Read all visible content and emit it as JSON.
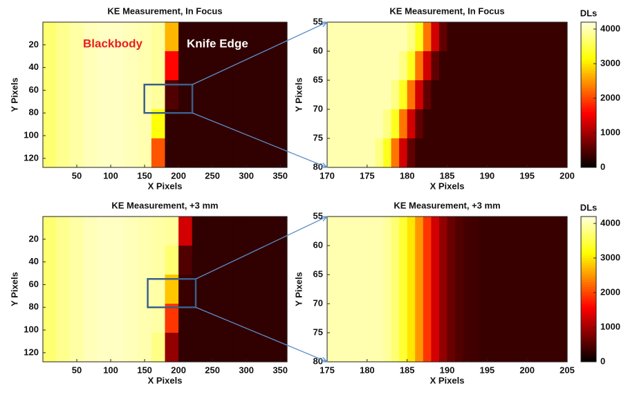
{
  "chart_data": [
    {
      "type": "heatmap",
      "title": "KE Measurement, In Focus",
      "xlabel": "X Pixels",
      "ylabel": "Y Pixels",
      "xlim": [
        0,
        360
      ],
      "ylim": [
        0,
        128
      ],
      "y_reversed": true,
      "clim": [
        0,
        4200
      ],
      "xticks": [
        50,
        100,
        150,
        200,
        250,
        300,
        350
      ],
      "yticks": [
        20,
        40,
        60,
        80,
        100,
        120
      ],
      "annotations": [
        {
          "text": "Blackbody",
          "color": "#e8201c"
        },
        {
          "text": "Knife Edge",
          "color": "#ffffff"
        }
      ],
      "values": [
        [
          3700,
          3850,
          3950,
          4050,
          4100,
          4100,
          4050,
          4000,
          3900,
          2700,
          300,
          300,
          300,
          300,
          300,
          300,
          300,
          300
        ],
        [
          3700,
          3850,
          3950,
          4050,
          4100,
          4100,
          4050,
          4000,
          3900,
          1600,
          300,
          300,
          300,
          300,
          300,
          300,
          300,
          300
        ],
        [
          3700,
          3850,
          3950,
          4050,
          4100,
          4100,
          4050,
          4000,
          3900,
          500,
          300,
          300,
          300,
          300,
          300,
          300,
          300,
          300
        ],
        [
          3700,
          3850,
          3950,
          4050,
          4100,
          4100,
          4050,
          4000,
          3200,
          300,
          300,
          300,
          300,
          300,
          300,
          300,
          300,
          300
        ],
        [
          3700,
          3850,
          3950,
          4050,
          4100,
          4100,
          4050,
          4000,
          2100,
          300,
          300,
          300,
          300,
          300,
          300,
          300,
          300,
          300
        ]
      ]
    },
    {
      "type": "heatmap",
      "title": "KE Measurement, In Focus",
      "xlabel": "X Pixels",
      "ylabel": "Y Pixels",
      "xlim": [
        170,
        200
      ],
      "ylim": [
        55,
        80
      ],
      "y_reversed": true,
      "clim": [
        0,
        4200
      ],
      "xticks": [
        170,
        175,
        180,
        185,
        190,
        195,
        200
      ],
      "yticks": [
        55,
        60,
        65,
        70,
        75,
        80
      ],
      "colorbar": {
        "label": "DLs",
        "ticks": [
          0,
          1000,
          2000,
          3000,
          4000
        ]
      },
      "values": [
        [
          4000,
          4000,
          4000,
          4000,
          4000,
          4000,
          4000,
          4000,
          4000,
          4000,
          3800,
          3300,
          2300,
          1300,
          600,
          350,
          350,
          350,
          350,
          350,
          350,
          350,
          350,
          350,
          350,
          350,
          350,
          350,
          350,
          350
        ],
        [
          4000,
          4000,
          4000,
          4000,
          4000,
          4000,
          4000,
          4000,
          4000,
          3800,
          3300,
          2300,
          1300,
          600,
          350,
          350,
          350,
          350,
          350,
          350,
          350,
          350,
          350,
          350,
          350,
          350,
          350,
          350,
          350,
          350
        ],
        [
          4000,
          4000,
          4000,
          4000,
          4000,
          4000,
          4000,
          4000,
          3800,
          3300,
          2300,
          1300,
          600,
          350,
          350,
          350,
          350,
          350,
          350,
          350,
          350,
          350,
          350,
          350,
          350,
          350,
          350,
          350,
          350,
          350
        ],
        [
          4000,
          4000,
          4000,
          4000,
          4000,
          4000,
          4000,
          3800,
          3300,
          2300,
          1300,
          600,
          350,
          350,
          350,
          350,
          350,
          350,
          350,
          350,
          350,
          350,
          350,
          350,
          350,
          350,
          350,
          350,
          350,
          350
        ],
        [
          4000,
          4000,
          4000,
          4000,
          4000,
          4000,
          3800,
          3300,
          2300,
          1300,
          600,
          350,
          350,
          350,
          350,
          350,
          350,
          350,
          350,
          350,
          350,
          350,
          350,
          350,
          350,
          350,
          350,
          350,
          350,
          350
        ]
      ]
    },
    {
      "type": "heatmap",
      "title": "KE Measurement, +3 mm",
      "xlabel": "X Pixels",
      "ylabel": "Y Pixels",
      "xlim": [
        0,
        360
      ],
      "ylim": [
        0,
        128
      ],
      "y_reversed": true,
      "clim": [
        0,
        4200
      ],
      "xticks": [
        50,
        100,
        150,
        200,
        250,
        300,
        350
      ],
      "yticks": [
        20,
        40,
        60,
        80,
        100,
        120
      ],
      "values": [
        [
          3700,
          3850,
          3950,
          4050,
          4100,
          4100,
          4050,
          4000,
          3950,
          3900,
          1300,
          300,
          300,
          300,
          300,
          300,
          300,
          300
        ],
        [
          3700,
          3850,
          3950,
          4050,
          4100,
          4100,
          4050,
          4000,
          3950,
          3700,
          500,
          300,
          300,
          300,
          300,
          300,
          300,
          300
        ],
        [
          3700,
          3850,
          3950,
          4050,
          4100,
          4100,
          4050,
          4000,
          3950,
          2800,
          350,
          300,
          300,
          300,
          300,
          300,
          300,
          300
        ],
        [
          3700,
          3850,
          3950,
          4050,
          4100,
          4100,
          4050,
          4000,
          3950,
          1900,
          300,
          300,
          300,
          300,
          300,
          300,
          300,
          300
        ],
        [
          3700,
          3850,
          3950,
          4050,
          4100,
          4100,
          4050,
          4000,
          3800,
          900,
          300,
          300,
          300,
          300,
          300,
          300,
          300,
          300
        ]
      ]
    },
    {
      "type": "heatmap",
      "title": "KE Measurement, +3 mm",
      "xlabel": "X Pixels",
      "ylabel": "Y Pixels",
      "xlim": [
        175,
        205
      ],
      "ylim": [
        55,
        80
      ],
      "y_reversed": true,
      "clim": [
        0,
        4200
      ],
      "xticks": [
        175,
        180,
        185,
        190,
        195,
        200,
        205
      ],
      "yticks": [
        55,
        60,
        65,
        70,
        75,
        80
      ],
      "colorbar": {
        "label": "DLs",
        "ticks": [
          0,
          1000,
          2000,
          3000,
          4000
        ]
      },
      "values": [
        [
          4000,
          4000,
          4000,
          4000,
          4000,
          4000,
          4000,
          3900,
          3700,
          3400,
          3000,
          2500,
          1900,
          1300,
          900,
          650,
          500,
          420,
          380,
          350,
          350,
          350,
          350,
          350,
          350,
          350,
          350,
          350,
          350,
          350
        ]
      ]
    }
  ]
}
